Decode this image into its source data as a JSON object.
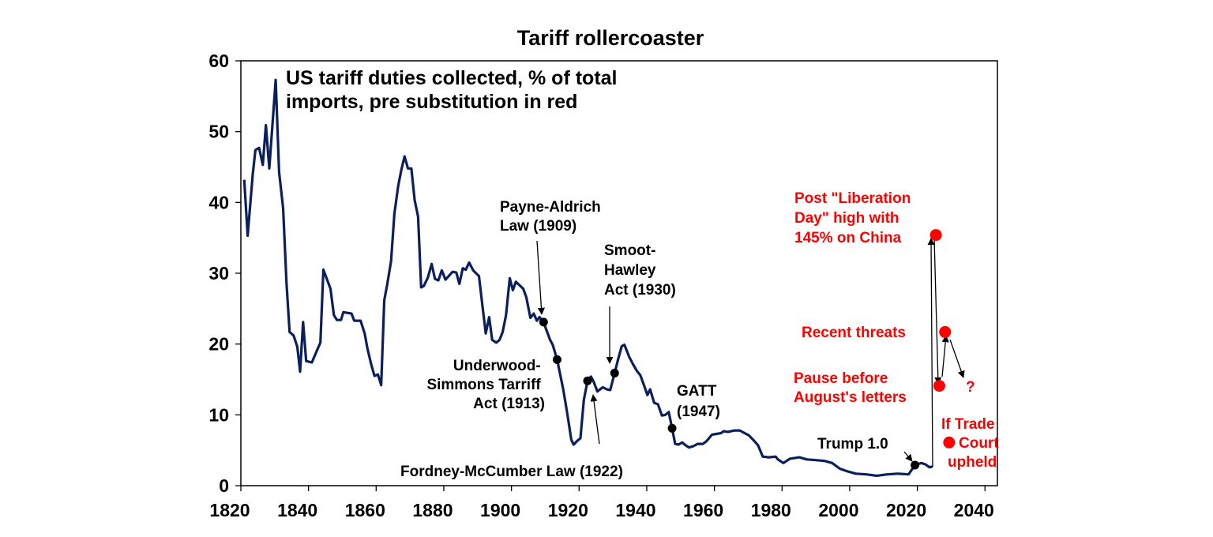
{
  "chart_data": {
    "type": "line",
    "title": "Tariff rollercoaster",
    "subtitle": [
      "US tariff duties collected, % of total",
      "imports, pre substitution in red"
    ],
    "xlim": [
      1820,
      2044
    ],
    "ylim": [
      0,
      60
    ],
    "x_ticks": [
      "1820",
      "1840",
      "1860",
      "1880",
      "1900",
      "1920",
      "1940",
      "1960",
      "1980",
      "2000",
      "2020",
      "2040"
    ],
    "y_ticks": [
      "0",
      "10",
      "20",
      "30",
      "40",
      "50",
      "60"
    ],
    "grid": false,
    "line_color": "#0b1f5c",
    "highlight_color": "#ff0000",
    "series": [
      {
        "points": [
          [
            1821,
            43.2
          ],
          [
            1822,
            35.3
          ],
          [
            1823.5,
            43.9
          ],
          [
            1824.3,
            47.4
          ],
          [
            1825.4,
            47.7
          ],
          [
            1826.5,
            45.3
          ],
          [
            1827.4,
            50.9
          ],
          [
            1828.4,
            44.8
          ],
          [
            1830.3,
            57.3
          ],
          [
            1831.3,
            44.3
          ],
          [
            1832.5,
            39.2
          ],
          [
            1833.5,
            28.6
          ],
          [
            1834.4,
            21.7
          ],
          [
            1835.6,
            21.2
          ],
          [
            1836.7,
            19.6
          ],
          [
            1837.5,
            16.1
          ],
          [
            1838.4,
            23.1
          ],
          [
            1839.3,
            17.6
          ],
          [
            1841,
            17.4
          ],
          [
            1842.6,
            19.2
          ],
          [
            1843.5,
            20.2
          ],
          [
            1844.4,
            30.5
          ],
          [
            1846.5,
            27.8
          ],
          [
            1847.5,
            24.1
          ],
          [
            1848.4,
            23.4
          ],
          [
            1849.6,
            23.4
          ],
          [
            1850.3,
            24.5
          ],
          [
            1852.7,
            24.3
          ],
          [
            1853.5,
            23.3
          ],
          [
            1855.4,
            23.3
          ],
          [
            1856.6,
            21.5
          ],
          [
            1857.4,
            19.4
          ],
          [
            1858.5,
            17.2
          ],
          [
            1859.5,
            15.5
          ],
          [
            1860.5,
            15.7
          ],
          [
            1861.5,
            14.2
          ],
          [
            1862.4,
            26.2
          ],
          [
            1863.2,
            28.2
          ],
          [
            1864.4,
            31.7
          ],
          [
            1865.4,
            38.4
          ],
          [
            1866.5,
            42.3
          ],
          [
            1867.5,
            44.7
          ],
          [
            1868.4,
            46.5
          ],
          [
            1869.4,
            44.8
          ],
          [
            1870.4,
            44.8
          ],
          [
            1871.4,
            40.3
          ],
          [
            1872.4,
            38
          ],
          [
            1873.3,
            28
          ],
          [
            1874.1,
            28.2
          ],
          [
            1875.3,
            29.4
          ],
          [
            1876.4,
            31.3
          ],
          [
            1877.4,
            29.2
          ],
          [
            1878.4,
            29
          ],
          [
            1879.4,
            30.4
          ],
          [
            1880.5,
            29.1
          ],
          [
            1882.6,
            30.2
          ],
          [
            1883.7,
            30.1
          ],
          [
            1884.6,
            28.5
          ],
          [
            1885.6,
            30.7
          ],
          [
            1886.5,
            30.5
          ],
          [
            1887.5,
            31.5
          ],
          [
            1888.7,
            30.4
          ],
          [
            1890.4,
            29.6
          ],
          [
            1891.4,
            25.5
          ],
          [
            1892.4,
            21.5
          ],
          [
            1893.4,
            23.8
          ],
          [
            1894.3,
            20.6
          ],
          [
            1895.5,
            20.2
          ],
          [
            1896.5,
            20.6
          ],
          [
            1897.4,
            21.7
          ],
          [
            1898.4,
            24.1
          ],
          [
            1899.5,
            29.3
          ],
          [
            1900.4,
            27.6
          ],
          [
            1901.3,
            28.8
          ],
          [
            1903.5,
            27.8
          ],
          [
            1904.4,
            26.6
          ],
          [
            1905.6,
            23.7
          ],
          [
            1906.6,
            24.3
          ],
          [
            1907.5,
            23.3
          ],
          [
            1908.3,
            23.8
          ],
          [
            1909.5,
            23.1
          ],
          [
            1911.4,
            20.6
          ],
          [
            1912.2,
            19.9
          ],
          [
            1913.5,
            17.8
          ],
          [
            1915.3,
            13.6
          ],
          [
            1916.5,
            10.2
          ],
          [
            1917.7,
            6.5
          ],
          [
            1918.4,
            5.8
          ],
          [
            1919.4,
            6.3
          ],
          [
            1920.4,
            6.7
          ],
          [
            1921.4,
            12.1
          ],
          [
            1922.5,
            14.8
          ],
          [
            1923.5,
            15.4
          ],
          [
            1924.3,
            14.7
          ],
          [
            1925.4,
            13.3
          ],
          [
            1927,
            13.9
          ],
          [
            1928.2,
            13.6
          ],
          [
            1929.2,
            13.5
          ],
          [
            1930.5,
            15.9
          ],
          [
            1931.5,
            17.8
          ],
          [
            1932.6,
            19.7
          ],
          [
            1933.4,
            19.9
          ],
          [
            1934.8,
            18.2
          ],
          [
            1936,
            17.1
          ],
          [
            1937.1,
            16.2
          ],
          [
            1938.1,
            15.6
          ],
          [
            1939.1,
            14.3
          ],
          [
            1940.2,
            12.8
          ],
          [
            1941,
            13.6
          ],
          [
            1942.2,
            11.7
          ],
          [
            1943.3,
            11.5
          ],
          [
            1944.5,
            9.9
          ],
          [
            1945.5,
            10
          ],
          [
            1946.5,
            10.4
          ],
          [
            1947.5,
            8.1
          ],
          [
            1948.4,
            5.9
          ],
          [
            1949.4,
            5.8
          ],
          [
            1950.5,
            6.1
          ],
          [
            1951.5,
            5.7
          ],
          [
            1952.5,
            5.4
          ],
          [
            1953.9,
            5.6
          ],
          [
            1955,
            5.9
          ],
          [
            1956.6,
            5.9
          ],
          [
            1957.7,
            6.3
          ],
          [
            1959.3,
            7.2
          ],
          [
            1960.5,
            7.3
          ],
          [
            1961.9,
            7.4
          ],
          [
            1962.8,
            7.7
          ],
          [
            1964,
            7.6
          ],
          [
            1965.9,
            7.8
          ],
          [
            1967.5,
            7.8
          ],
          [
            1969,
            7.4
          ],
          [
            1970.2,
            7.1
          ],
          [
            1971.8,
            6.3
          ],
          [
            1972.9,
            5.7
          ],
          [
            1974.3,
            4.1
          ],
          [
            1976.1,
            4
          ],
          [
            1978.1,
            4.1
          ],
          [
            1978.8,
            3.7
          ],
          [
            1980.4,
            3.2
          ],
          [
            1982.3,
            3.8
          ],
          [
            1985.1,
            4
          ],
          [
            1987.4,
            3.7
          ],
          [
            1990.1,
            3.6
          ],
          [
            1992.5,
            3.5
          ],
          [
            1994.8,
            3.2
          ],
          [
            1997.1,
            2.4
          ],
          [
            1999.5,
            2
          ],
          [
            2001.8,
            1.7
          ],
          [
            2004.9,
            1.6
          ],
          [
            2008,
            1.4
          ],
          [
            2011.1,
            1.6
          ],
          [
            2014.2,
            1.7
          ],
          [
            2017.4,
            1.6
          ],
          [
            2019.3,
            2.9
          ],
          [
            2021.2,
            3.2
          ],
          [
            2022.4,
            3
          ],
          [
            2023.6,
            2.6
          ],
          [
            2024.5,
            2.7
          ]
        ]
      }
    ],
    "event_markers": [
      {
        "year": 1909.5,
        "value": 23.1,
        "label": [
          "Payne-Aldrich",
          "Law (1909)"
        ]
      },
      {
        "year": 1913.5,
        "value": 17.8,
        "label": [
          "Underwood-",
          "Simmons Tarriff",
          "Act (1913)"
        ]
      },
      {
        "year": 1922.5,
        "value": 14.8,
        "label": [
          "Fordney-McCumber Law (1922)"
        ]
      },
      {
        "year": 1930.5,
        "value": 15.9,
        "label": [
          "Smoot-",
          "Hawley",
          "Act (1930)"
        ]
      },
      {
        "year": 1947.5,
        "value": 8.1,
        "label": [
          "GATT",
          "(1947)"
        ]
      },
      {
        "year": 2019.3,
        "value": 2.9,
        "label": [
          "Trump 1.0"
        ]
      }
    ],
    "red_points": [
      {
        "year": 2025.5,
        "value": 35.4,
        "label": [
          "Post \"Liberation",
          "Day\" high with",
          "145% on China"
        ]
      },
      {
        "year": 2026.5,
        "value": 14.1,
        "label": [
          "Pause before",
          "August's letters"
        ]
      },
      {
        "year": 2028.2,
        "value": 21.7,
        "label": [
          "Recent threats"
        ]
      },
      {
        "year": 2029.4,
        "value": 6.1,
        "label": [
          "If Trade",
          "Court",
          "upheld"
        ]
      }
    ],
    "question_mark": "?"
  }
}
